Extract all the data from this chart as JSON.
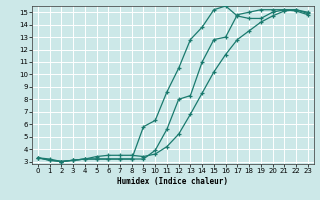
{
  "xlabel": "Humidex (Indice chaleur)",
  "xlim": [
    -0.5,
    23.5
  ],
  "ylim": [
    2.8,
    15.5
  ],
  "xticks": [
    0,
    1,
    2,
    3,
    4,
    5,
    6,
    7,
    8,
    9,
    10,
    11,
    12,
    13,
    14,
    15,
    16,
    17,
    18,
    19,
    20,
    21,
    22,
    23
  ],
  "yticks": [
    3,
    4,
    5,
    6,
    7,
    8,
    9,
    10,
    11,
    12,
    13,
    14,
    15
  ],
  "bg_color": "#cce8e8",
  "line_color": "#1a7a6e",
  "grid_color": "#bbdddd",
  "line1_x": [
    0,
    1,
    2,
    3,
    4,
    5,
    6,
    7,
    8,
    9,
    10,
    11,
    12,
    13,
    14,
    15,
    16,
    17,
    18,
    19,
    20,
    21,
    22,
    23
  ],
  "line1_y": [
    3.3,
    3.1,
    3.0,
    3.1,
    3.2,
    3.2,
    3.2,
    3.2,
    3.2,
    3.2,
    3.9,
    5.6,
    8.0,
    8.3,
    11.0,
    12.8,
    13.0,
    14.8,
    15.0,
    15.2,
    15.2,
    15.2,
    15.1,
    14.8
  ],
  "line2_x": [
    0,
    1,
    2,
    3,
    4,
    5,
    6,
    7,
    8,
    9,
    10,
    11,
    12,
    13,
    14,
    15,
    16,
    17,
    18,
    19,
    20,
    21,
    22,
    23
  ],
  "line2_y": [
    3.3,
    3.1,
    3.0,
    3.1,
    3.2,
    3.2,
    3.2,
    3.2,
    3.2,
    5.8,
    6.3,
    8.6,
    10.5,
    12.8,
    13.8,
    15.2,
    15.5,
    14.7,
    14.5,
    14.5,
    15.0,
    15.2,
    15.2,
    15.0
  ],
  "line3_x": [
    0,
    1,
    2,
    3,
    4,
    5,
    6,
    7,
    8,
    9,
    10,
    11,
    12,
    13,
    14,
    15,
    16,
    17,
    18,
    19,
    20,
    21,
    22,
    23
  ],
  "line3_y": [
    3.3,
    3.2,
    3.0,
    3.1,
    3.2,
    3.4,
    3.5,
    3.5,
    3.5,
    3.4,
    3.6,
    4.2,
    5.2,
    6.8,
    8.5,
    10.2,
    11.6,
    12.8,
    13.5,
    14.2,
    14.7,
    15.1,
    15.2,
    14.9
  ]
}
